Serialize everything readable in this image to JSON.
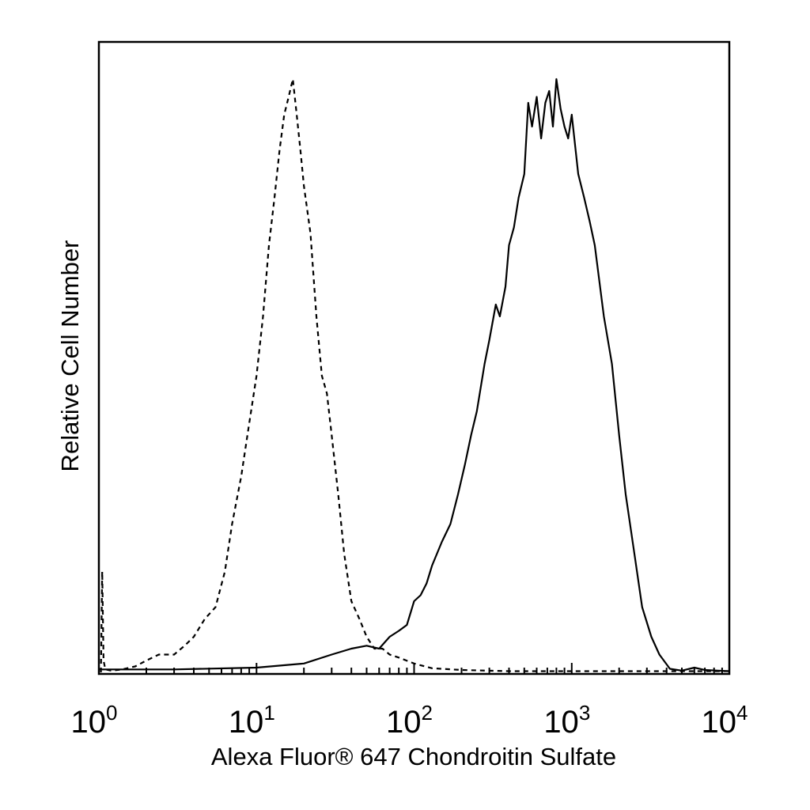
{
  "chart_data": {
    "type": "line",
    "title": "",
    "xlabel": "Alexa Fluor® 647 Chondroitin Sulfate",
    "ylabel": "Relative Cell Number",
    "xscale": "log",
    "xlim": [
      1,
      10000
    ],
    "ylim": [
      0,
      1
    ],
    "grid": false,
    "legend": "none",
    "x_ticks": [
      {
        "base": "10",
        "exp": "0"
      },
      {
        "base": "10",
        "exp": "1"
      },
      {
        "base": "10",
        "exp": "2"
      },
      {
        "base": "10",
        "exp": "3"
      },
      {
        "base": "10",
        "exp": "4"
      }
    ],
    "series": [
      {
        "style": "dashed",
        "color": "#000000",
        "x": [
          1.03,
          1.05,
          1.07,
          1.1,
          1.2,
          1.4,
          1.7,
          2.0,
          2.4,
          3.0,
          3.5,
          4.0,
          4.7,
          5.5,
          6.3,
          7.0,
          8.0,
          9.0,
          10.0,
          11.0,
          12.0,
          13.0,
          14.0,
          15.0,
          16.0,
          17.0,
          18.0,
          19.0,
          20.0,
          22.0,
          24.0,
          26.0,
          28.0,
          30.0,
          33.0,
          36.0,
          40.0,
          45.0,
          50.0,
          56.0,
          63.0,
          70.0,
          80.0,
          100.0,
          130.0,
          200.0,
          400.0,
          1000.0,
          3000.0,
          10000.0
        ],
        "y": [
          0.0,
          0.17,
          0.02,
          0.005,
          0.003,
          0.005,
          0.01,
          0.02,
          0.03,
          0.03,
          0.045,
          0.06,
          0.09,
          0.11,
          0.17,
          0.25,
          0.33,
          0.42,
          0.5,
          0.6,
          0.72,
          0.8,
          0.88,
          0.94,
          0.97,
          1.0,
          0.94,
          0.88,
          0.82,
          0.74,
          0.6,
          0.5,
          0.47,
          0.4,
          0.3,
          0.2,
          0.12,
          0.09,
          0.06,
          0.04,
          0.04,
          0.03,
          0.025,
          0.015,
          0.007,
          0.004,
          0.002,
          0.002,
          0.002,
          0.002
        ]
      },
      {
        "style": "solid",
        "color": "#000000",
        "x": [
          1.0,
          3.0,
          10.0,
          20.0,
          30.0,
          40.0,
          50.0,
          60.0,
          70.0,
          80.0,
          90.0,
          100.0,
          110.0,
          120.0,
          130.0,
          150.0,
          170.0,
          190.0,
          210.0,
          230.0,
          250.0,
          280.0,
          300.0,
          330.0,
          350.0,
          380.0,
          400.0,
          430.0,
          460.0,
          500.0,
          530.0,
          560.0,
          600.0,
          640.0,
          680.0,
          720.0,
          760.0,
          800.0,
          850.0,
          900.0,
          950.0,
          1000.0,
          1100.0,
          1200.0,
          1300.0,
          1400.0,
          1600.0,
          1800.0,
          2000.0,
          2200.0,
          2500.0,
          2800.0,
          3200.0,
          3600.0,
          4200.0,
          5000.0,
          6000.0,
          7000.0,
          8500.0,
          10000.0
        ],
        "y": [
          0.005,
          0.005,
          0.008,
          0.015,
          0.03,
          0.04,
          0.045,
          0.04,
          0.06,
          0.07,
          0.08,
          0.12,
          0.13,
          0.15,
          0.18,
          0.22,
          0.25,
          0.3,
          0.35,
          0.4,
          0.44,
          0.52,
          0.56,
          0.62,
          0.6,
          0.65,
          0.72,
          0.75,
          0.8,
          0.84,
          0.96,
          0.92,
          0.97,
          0.9,
          0.96,
          0.98,
          0.92,
          1.0,
          0.95,
          0.92,
          0.9,
          0.94,
          0.84,
          0.8,
          0.76,
          0.72,
          0.6,
          0.52,
          0.4,
          0.3,
          0.2,
          0.11,
          0.06,
          0.03,
          0.006,
          0.003,
          0.008,
          0.004,
          0.003,
          0.002
        ]
      }
    ]
  }
}
